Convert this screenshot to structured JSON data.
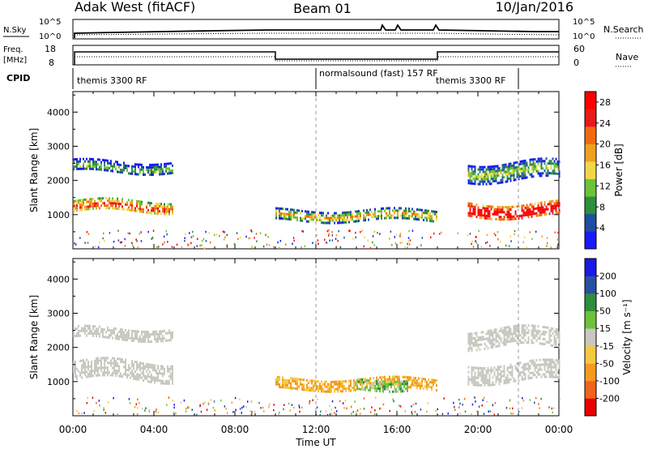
{
  "header": {
    "station": "Adak West (fitACF)",
    "beam": "Beam 01",
    "date": "10/Jan/2016"
  },
  "summary_panels": {
    "nsky_label": "N.Sky",
    "nsearch_label": "N.Search",
    "freq_label_top": "Freq.",
    "freq_label_unit": "[MHz]",
    "nave_label": "Nave",
    "cpid_label": "CPID",
    "noise_ticks": [
      "10^5",
      "10^0"
    ],
    "freq_ticks": [
      "18",
      "8"
    ],
    "nave_ticks": [
      "60",
      "0"
    ]
  },
  "cpid_segments": [
    {
      "label": "themis 3300 RF",
      "start_hour": 0,
      "end_hour": 12
    },
    {
      "label": "normalsound (fast) 157 RF",
      "start_hour": 12,
      "end_hour": 18
    },
    {
      "label": "themis 3300 RF",
      "start_hour": 18,
      "end_hour": 22
    }
  ],
  "colors": {
    "power_scale": [
      "#1a1aff",
      "#1f4fa0",
      "#2e8f3e",
      "#6cc33a",
      "#f2d64a",
      "#f0a020",
      "#f26a10",
      "#e81a1a",
      "#ff0000"
    ],
    "velocity_scale": [
      "#e80000",
      "#f0641e",
      "#f59a1e",
      "#f5c842",
      "#c8c8c0",
      "#6cc33a",
      "#2e8f3e",
      "#2850a0",
      "#1a1ae6"
    ],
    "ground_scatter": "#c8c8c0"
  },
  "chart_data": [
    {
      "type": "heatmap",
      "name": "power",
      "xlabel": "Time UT",
      "ylabel": "Slant Range [km]",
      "x_ticks": [
        "00:00",
        "04:00",
        "08:00",
        "12:00",
        "16:00",
        "20:00",
        "00:00"
      ],
      "xlim_hours": [
        0,
        24
      ],
      "ylim": [
        0,
        4600
      ],
      "y_ticks": [
        1000,
        2000,
        3000,
        4000
      ],
      "colorbar": {
        "label": "Power [dB]",
        "ticks": [
          4,
          8,
          12,
          16,
          20,
          24,
          28
        ],
        "range": [
          0,
          30
        ]
      },
      "echo_regions": [
        {
          "t_start": 0.0,
          "t_end": 4.9,
          "r_center": 1250,
          "r_width": 350,
          "power": 18
        },
        {
          "t_start": 0.0,
          "t_end": 4.9,
          "r_center": 2400,
          "r_width": 350,
          "power": 6
        },
        {
          "t_start": 10.0,
          "t_end": 18.0,
          "r_center": 1000,
          "r_width": 300,
          "power": 12
        },
        {
          "t_start": 19.5,
          "t_end": 24.0,
          "r_center": 1150,
          "r_width": 400,
          "power": 26
        },
        {
          "t_start": 19.5,
          "t_end": 24.0,
          "r_center": 2300,
          "r_width": 500,
          "power": 8
        }
      ]
    },
    {
      "type": "heatmap",
      "name": "velocity",
      "xlabel": "Time UT",
      "ylabel": "Slant Range [km]",
      "x_ticks": [
        "00:00",
        "04:00",
        "08:00",
        "12:00",
        "16:00",
        "20:00",
        "00:00"
      ],
      "xlim_hours": [
        0,
        24
      ],
      "ylim": [
        0,
        4600
      ],
      "y_ticks": [
        1000,
        2000,
        3000,
        4000
      ],
      "colorbar": {
        "label": "Velocity [m s⁻¹]",
        "ticks": [
          "200",
          "100",
          "50",
          "15",
          "-15",
          "-50",
          "-100",
          "-200"
        ]
      },
      "echo_regions": [
        {
          "t_start": 0.0,
          "t_end": 4.9,
          "r_center": 1350,
          "r_width": 500,
          "velocity": 0,
          "ground_scatter": true
        },
        {
          "t_start": 0.0,
          "t_end": 4.9,
          "r_center": 2400,
          "r_width": 350,
          "velocity": 0,
          "ground_scatter": true
        },
        {
          "t_start": 10.0,
          "t_end": 18.0,
          "r_center": 950,
          "r_width": 300,
          "velocity": -50
        },
        {
          "t_start": 14.0,
          "t_end": 16.5,
          "r_center": 950,
          "r_width": 300,
          "velocity": 30
        },
        {
          "t_start": 19.5,
          "t_end": 24.0,
          "r_center": 1300,
          "r_width": 500,
          "velocity": 0,
          "ground_scatter": true
        },
        {
          "t_start": 19.5,
          "t_end": 24.0,
          "r_center": 2300,
          "r_width": 500,
          "velocity": 0,
          "ground_scatter": true
        }
      ]
    }
  ]
}
